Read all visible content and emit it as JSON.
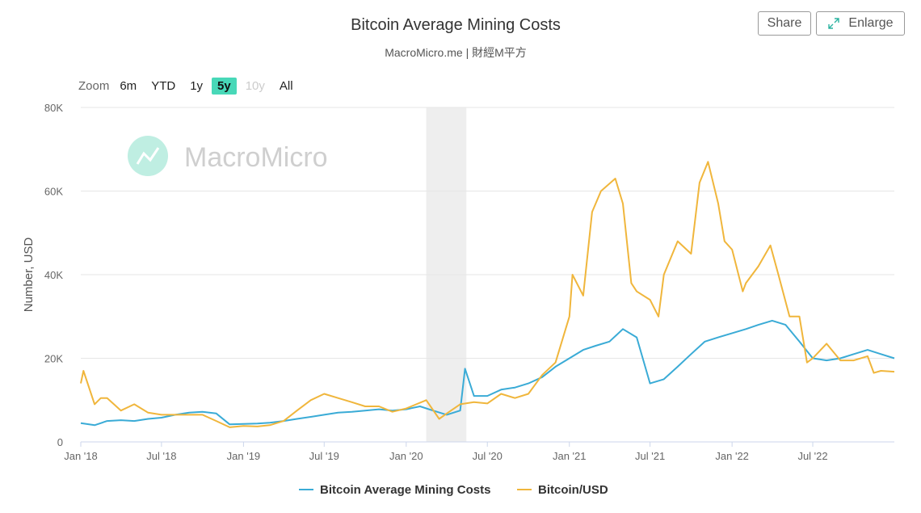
{
  "title": "Bitcoin Average Mining Costs",
  "subtitle": "MacroMicro.me | 財經M平方",
  "buttons": {
    "share": "Share",
    "enlarge": "Enlarge"
  },
  "zoom": {
    "label": "Zoom",
    "options": [
      {
        "label": "6m",
        "state": "normal"
      },
      {
        "label": "YTD",
        "state": "normal"
      },
      {
        "label": "1y",
        "state": "normal"
      },
      {
        "label": "5y",
        "state": "active"
      },
      {
        "label": "10y",
        "state": "disabled"
      },
      {
        "label": "All",
        "state": "normal"
      }
    ]
  },
  "watermark": "MacroMicro",
  "colors": {
    "mining_cost": "#3aabd6",
    "bitcoin_usd": "#f0b63c",
    "accent": "#48d8b8",
    "shade": "#eeeeee"
  },
  "chart_data": {
    "type": "line",
    "title": "Bitcoin Average Mining Costs",
    "ylabel": "Number, USD",
    "ylim": [
      0,
      80000
    ],
    "y_ticks": [
      0,
      20000,
      40000,
      60000,
      80000
    ],
    "y_tick_labels": [
      "0",
      "20K",
      "40K",
      "60K",
      "80K"
    ],
    "x_range": [
      "2018-01-01",
      "2022-12-31"
    ],
    "x_ticks": [
      "2018-01-01",
      "2018-07-01",
      "2019-01-01",
      "2019-07-01",
      "2020-01-01",
      "2020-07-01",
      "2021-01-01",
      "2021-07-01",
      "2022-01-01",
      "2022-07-01"
    ],
    "x_tick_labels": [
      "Jan '18",
      "Jul '18",
      "Jan '19",
      "Jul '19",
      "Jan '20",
      "Jul '20",
      "Jan '21",
      "Jul '21",
      "Jan '22",
      "Jul '22"
    ],
    "shaded_range": [
      "2020-02-15",
      "2020-05-15"
    ],
    "grid": true,
    "legend_position": "bottom",
    "series": [
      {
        "name": "Bitcoin Average Mining Costs",
        "color": "#3aabd6",
        "points": [
          [
            "2018-01-01",
            4500
          ],
          [
            "2018-02-01",
            4000
          ],
          [
            "2018-03-01",
            5000
          ],
          [
            "2018-04-01",
            5200
          ],
          [
            "2018-05-01",
            5000
          ],
          [
            "2018-06-01",
            5500
          ],
          [
            "2018-07-01",
            5800
          ],
          [
            "2018-08-01",
            6500
          ],
          [
            "2018-09-01",
            7000
          ],
          [
            "2018-10-01",
            7200
          ],
          [
            "2018-11-01",
            6800
          ],
          [
            "2018-12-01",
            4200
          ],
          [
            "2019-01-01",
            4300
          ],
          [
            "2019-02-01",
            4400
          ],
          [
            "2019-03-01",
            4600
          ],
          [
            "2019-04-01",
            5000
          ],
          [
            "2019-05-01",
            5500
          ],
          [
            "2019-06-01",
            6000
          ],
          [
            "2019-07-01",
            6500
          ],
          [
            "2019-08-01",
            7000
          ],
          [
            "2019-09-01",
            7200
          ],
          [
            "2019-10-01",
            7500
          ],
          [
            "2019-11-01",
            7800
          ],
          [
            "2019-12-01",
            7500
          ],
          [
            "2020-01-01",
            7800
          ],
          [
            "2020-02-01",
            8500
          ],
          [
            "2020-03-01",
            7500
          ],
          [
            "2020-04-01",
            6500
          ],
          [
            "2020-05-01",
            7500
          ],
          [
            "2020-05-12",
            17500
          ],
          [
            "2020-06-01",
            11000
          ],
          [
            "2020-07-01",
            11000
          ],
          [
            "2020-08-01",
            12500
          ],
          [
            "2020-09-01",
            13000
          ],
          [
            "2020-10-01",
            14000
          ],
          [
            "2020-11-01",
            15500
          ],
          [
            "2020-12-01",
            18000
          ],
          [
            "2021-01-01",
            20000
          ],
          [
            "2021-02-01",
            22000
          ],
          [
            "2021-03-01",
            23000
          ],
          [
            "2021-04-01",
            24000
          ],
          [
            "2021-05-01",
            27000
          ],
          [
            "2021-06-01",
            25000
          ],
          [
            "2021-07-01",
            14000
          ],
          [
            "2021-08-01",
            15000
          ],
          [
            "2021-09-01",
            18000
          ],
          [
            "2021-10-01",
            21000
          ],
          [
            "2021-11-01",
            24000
          ],
          [
            "2021-12-01",
            25000
          ],
          [
            "2022-01-01",
            26000
          ],
          [
            "2022-02-01",
            27000
          ],
          [
            "2022-03-01",
            28000
          ],
          [
            "2022-04-01",
            29000
          ],
          [
            "2022-05-01",
            28000
          ],
          [
            "2022-06-01",
            24000
          ],
          [
            "2022-07-01",
            20000
          ],
          [
            "2022-08-01",
            19500
          ],
          [
            "2022-09-01",
            20000
          ],
          [
            "2022-10-01",
            21000
          ],
          [
            "2022-11-01",
            22000
          ],
          [
            "2022-12-01",
            21000
          ],
          [
            "2022-12-31",
            20000
          ]
        ]
      },
      {
        "name": "Bitcoin/USD",
        "color": "#f0b63c",
        "points": [
          [
            "2018-01-01",
            14000
          ],
          [
            "2018-01-07",
            17000
          ],
          [
            "2018-02-01",
            9000
          ],
          [
            "2018-02-15",
            10500
          ],
          [
            "2018-03-01",
            10500
          ],
          [
            "2018-04-01",
            7500
          ],
          [
            "2018-05-01",
            9000
          ],
          [
            "2018-06-01",
            7000
          ],
          [
            "2018-07-01",
            6500
          ],
          [
            "2018-08-01",
            6500
          ],
          [
            "2018-09-01",
            6500
          ],
          [
            "2018-10-01",
            6500
          ],
          [
            "2018-11-01",
            5000
          ],
          [
            "2018-12-01",
            3500
          ],
          [
            "2019-01-01",
            3800
          ],
          [
            "2019-02-01",
            3700
          ],
          [
            "2019-03-01",
            4000
          ],
          [
            "2019-04-01",
            5000
          ],
          [
            "2019-05-01",
            7500
          ],
          [
            "2019-06-01",
            10000
          ],
          [
            "2019-07-01",
            11500
          ],
          [
            "2019-08-01",
            10500
          ],
          [
            "2019-09-01",
            9500
          ],
          [
            "2019-10-01",
            8500
          ],
          [
            "2019-11-01",
            8500
          ],
          [
            "2019-12-01",
            7200
          ],
          [
            "2020-01-01",
            8000
          ],
          [
            "2020-02-15",
            10000
          ],
          [
            "2020-03-15",
            5500
          ],
          [
            "2020-04-01",
            6800
          ],
          [
            "2020-05-01",
            9000
          ],
          [
            "2020-06-01",
            9500
          ],
          [
            "2020-07-01",
            9200
          ],
          [
            "2020-08-01",
            11500
          ],
          [
            "2020-09-01",
            10500
          ],
          [
            "2020-10-01",
            11500
          ],
          [
            "2020-11-01",
            16000
          ],
          [
            "2020-12-01",
            19000
          ],
          [
            "2021-01-01",
            30000
          ],
          [
            "2021-01-08",
            40000
          ],
          [
            "2021-02-01",
            35000
          ],
          [
            "2021-02-21",
            55000
          ],
          [
            "2021-03-13",
            60000
          ],
          [
            "2021-04-14",
            63000
          ],
          [
            "2021-05-01",
            57000
          ],
          [
            "2021-05-20",
            38000
          ],
          [
            "2021-06-01",
            36000
          ],
          [
            "2021-07-01",
            34000
          ],
          [
            "2021-07-20",
            30000
          ],
          [
            "2021-08-01",
            40000
          ],
          [
            "2021-09-01",
            48000
          ],
          [
            "2021-10-01",
            45000
          ],
          [
            "2021-10-20",
            62000
          ],
          [
            "2021-11-08",
            67000
          ],
          [
            "2021-12-01",
            57000
          ],
          [
            "2021-12-15",
            48000
          ],
          [
            "2022-01-01",
            46000
          ],
          [
            "2022-01-25",
            36000
          ],
          [
            "2022-02-01",
            38000
          ],
          [
            "2022-03-01",
            42000
          ],
          [
            "2022-03-28",
            47000
          ],
          [
            "2022-04-15",
            40000
          ],
          [
            "2022-05-10",
            30000
          ],
          [
            "2022-06-01",
            30000
          ],
          [
            "2022-06-18",
            19000
          ],
          [
            "2022-07-01",
            20000
          ],
          [
            "2022-08-01",
            23500
          ],
          [
            "2022-09-01",
            19500
          ],
          [
            "2022-10-01",
            19500
          ],
          [
            "2022-11-01",
            20500
          ],
          [
            "2022-11-15",
            16500
          ],
          [
            "2022-12-01",
            17000
          ],
          [
            "2022-12-31",
            16800
          ]
        ]
      }
    ]
  }
}
